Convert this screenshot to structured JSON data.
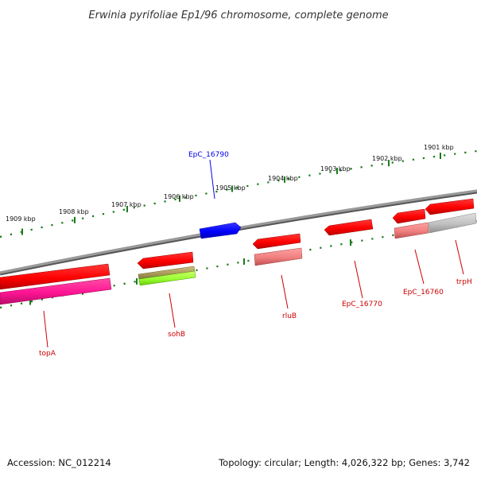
{
  "title": "Erwinia pyrifoliae Ep1/96 chromosome, complete genome",
  "footer": {
    "accession": "Accession: NC_012214",
    "summary": "Topology: circular; Length: 4,026,322 bp; Genes: 3,742"
  },
  "ticks": [
    "1909 kbp",
    "1908 kbp",
    "1907 kbp",
    "1906 kbp",
    "1905 kbp",
    "1904 kbp",
    "1903 kbp",
    "1902 kbp",
    "1901 kbp"
  ],
  "genes": [
    {
      "name": "EpC_16790",
      "color": "#0000ee"
    },
    {
      "name": "topA",
      "color": "#cc0000"
    },
    {
      "name": "sohB",
      "color": "#cc0000"
    },
    {
      "name": "rluB",
      "color": "#cc0000"
    },
    {
      "name": "EpC_16770",
      "color": "#cc0000"
    },
    {
      "name": "EpC_16760",
      "color": "#cc0000"
    },
    {
      "name": "trpH",
      "color": "#cc0000"
    }
  ],
  "colors": {
    "backbone": "#808080",
    "tick_marks": "#1a7a1a",
    "forward_cds": "#ff0000",
    "reverse_cds": "#ff0000",
    "upper_strand_gene": "#0000ff",
    "rrna_like": "#ff1493",
    "trna_like": "#99ff33",
    "pseudo_like": "#ff8080",
    "other_feature": "#c0c0c0"
  }
}
